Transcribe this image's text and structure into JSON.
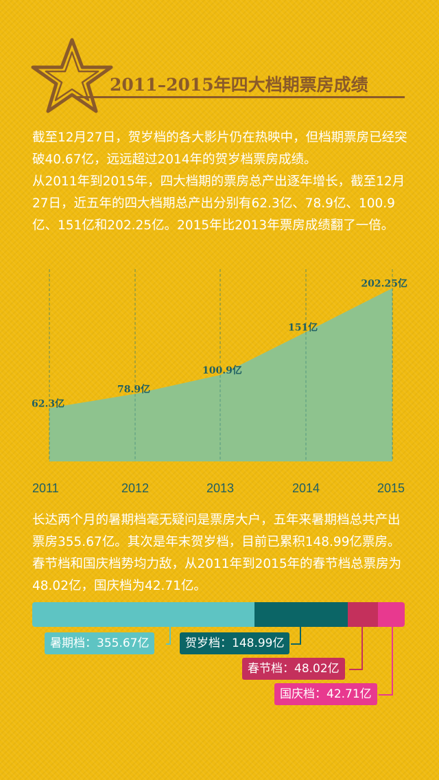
{
  "header": {
    "title": "2011–2015年四大档期票房成绩"
  },
  "intro": {
    "p1": "截至12月27日，贺岁档的各大影片仍在热映中，但档期票房已经突破40.67亿，远远超过2014年的贺岁档票房成绩。",
    "p2": "从2011年到2015年，四大档期的票房总产出逐年增长，截至12月27日，近五年的四大档期总产出分别有62.3亿、78.9亿、100.9亿、151亿和202.25亿。2015年比2013年票房成绩翻了一倍。"
  },
  "chart_data": [
    {
      "type": "area",
      "x": [
        "2011",
        "2012",
        "2013",
        "2014",
        "2015"
      ],
      "values": [
        62.3,
        78.9,
        100.9,
        151,
        202.25
      ],
      "data_labels": [
        "62.3亿",
        "78.9亿",
        "100.9亿",
        "151亿",
        "202.25亿"
      ],
      "ylim": [
        0,
        210
      ],
      "grid": "vertical dashed",
      "colors": {
        "fill": "#8ec38e",
        "grid": "#2b7a78",
        "label": "#1f5f63",
        "tick": "#1f5f63"
      }
    },
    {
      "type": "bar",
      "orientation": "horizontal-stacked",
      "categories": [
        "暑期档",
        "贺岁档",
        "春节档",
        "国庆档"
      ],
      "values": [
        355.67,
        148.99,
        48.02,
        42.71
      ],
      "labels": [
        "暑期档：355.67亿",
        "贺岁档：148.99亿",
        "春节档：48.02亿",
        "国庆档：42.71亿"
      ],
      "colors": [
        "#5ec4c3",
        "#0b6566",
        "#c4305c",
        "#e8398f"
      ]
    }
  ],
  "middle": {
    "p": "长达两个月的暑期档毫无疑问是票房大户，五年来暑期档总共产出票房355.67亿。其次是年末贺岁档，目前已累积148.99亿票房。春节档和国庆档势均力敌，从2011年到2015年的春节档总票房为48.02亿，国庆档为42.71亿。"
  },
  "icons": {
    "title_icon": "star-icon"
  }
}
